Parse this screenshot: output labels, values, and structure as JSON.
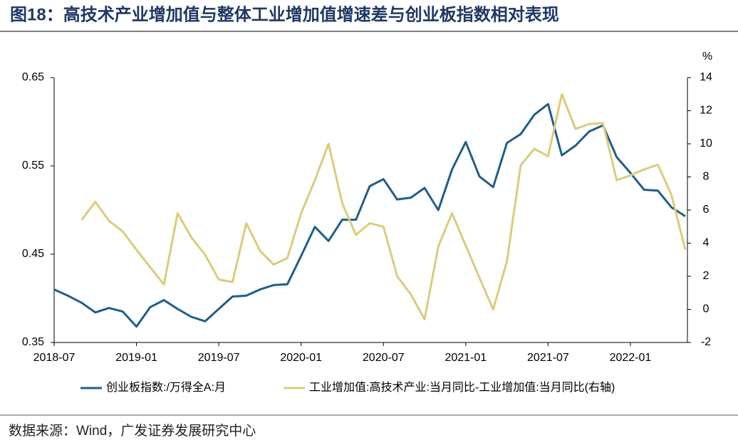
{
  "chart_data": {
    "type": "line",
    "title": "图18：高技术产业增加值与整体工业增加值增速差与创业板指数相对表现",
    "source": "数据来源：Wind，广发证券发展研究中心",
    "y2_label": "%",
    "x": [
      "2018-07",
      "2018-08",
      "2018-09",
      "2018-10",
      "2018-11",
      "2018-12",
      "2019-01",
      "2019-02",
      "2019-03",
      "2019-04",
      "2019-05",
      "2019-06",
      "2019-07",
      "2019-08",
      "2019-09",
      "2019-10",
      "2019-11",
      "2019-12",
      "2020-01",
      "2020-02",
      "2020-03",
      "2020-04",
      "2020-05",
      "2020-06",
      "2020-07",
      "2020-08",
      "2020-09",
      "2020-10",
      "2020-11",
      "2020-12",
      "2021-01",
      "2021-02",
      "2021-03",
      "2021-04",
      "2021-05",
      "2021-06",
      "2021-07",
      "2021-08",
      "2021-09",
      "2021-10",
      "2021-11",
      "2021-12",
      "2022-01",
      "2022-02",
      "2022-03",
      "2022-04",
      "2022-05"
    ],
    "xticks": [
      "2018-07",
      "2019-01",
      "2019-07",
      "2020-01",
      "2020-07",
      "2021-01",
      "2021-07",
      "2022-01"
    ],
    "series": [
      {
        "name": "创业板指数:/万得全A:月",
        "color": "#1f5f8b",
        "axis": "y",
        "values": [
          0.41,
          0.403,
          0.395,
          0.384,
          0.389,
          0.385,
          0.368,
          0.39,
          0.398,
          0.388,
          0.379,
          0.374,
          0.388,
          0.402,
          0.403,
          0.41,
          0.415,
          0.416,
          0.448,
          0.481,
          0.465,
          0.489,
          0.489,
          0.527,
          0.535,
          0.512,
          0.514,
          0.525,
          0.5,
          0.546,
          0.577,
          0.538,
          0.526,
          0.576,
          0.586,
          0.608,
          0.62,
          0.562,
          0.573,
          0.589,
          0.596,
          0.56,
          0.542,
          0.523,
          0.522,
          0.503,
          0.493
        ]
      },
      {
        "name": "工业增加值:高技术产业:当月同比-工业增加值:当月同比(右轴)",
        "color": "#dccb7a",
        "axis": "y2",
        "values": [
          null,
          null,
          5.4,
          6.5,
          5.35,
          4.7,
          3.6,
          2.55,
          1.5,
          5.8,
          4.35,
          3.3,
          1.8,
          1.65,
          5.2,
          3.55,
          2.7,
          3.1,
          5.8,
          7.8,
          10.0,
          6.4,
          4.5,
          5.2,
          5.0,
          2.0,
          0.9,
          -0.6,
          3.8,
          5.8,
          3.85,
          1.9,
          0.0,
          2.9,
          8.7,
          9.7,
          9.25,
          13.0,
          10.9,
          11.2,
          11.25,
          7.8,
          8.1,
          8.45,
          8.75,
          6.9,
          3.6
        ]
      }
    ],
    "ylim": [
      0.35,
      0.65
    ],
    "yticks": [
      0.35,
      0.45,
      0.55,
      0.65
    ],
    "y2lim": [
      -2,
      14
    ],
    "y2ticks": [
      -2,
      0,
      2,
      4,
      6,
      8,
      10,
      12,
      14
    ]
  }
}
